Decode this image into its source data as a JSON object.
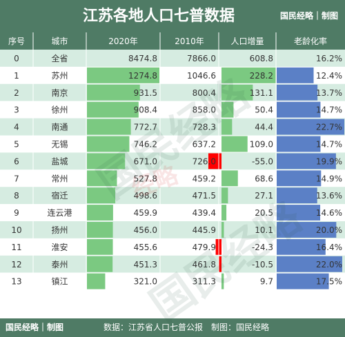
{
  "header": {
    "title": "江苏各地人口七普数据",
    "brand": "国民经略｜制图"
  },
  "footer": {
    "brand": "国民经略｜制图",
    "source": "数据：江苏省人口七普公报　制图：国民经略"
  },
  "colors": {
    "header_bg": "#4f7b65",
    "bar_green": "#7bc981",
    "bar_red": "#ff0000",
    "bar_blue": "#5b80c6",
    "row_alt": "#d6ece1",
    "row_base": "#ffffff"
  },
  "chart_data": {
    "type": "table",
    "columns": [
      "序号",
      "城市",
      "2020年",
      "2010年",
      "人口增量",
      "老龄化率"
    ],
    "rows": [
      {
        "idx": "0",
        "city": "全省",
        "p2020": "8474.8",
        "p2010": "7866.0",
        "delta": "608.8",
        "aging": "16.2%"
      },
      {
        "idx": "1",
        "city": "苏州",
        "p2020": "1274.8",
        "p2010": "1046.6",
        "delta": "228.2",
        "aging": "12.4%"
      },
      {
        "idx": "2",
        "city": "南京",
        "p2020": "931.5",
        "p2010": "800.4",
        "delta": "131.1",
        "aging": "13.7%"
      },
      {
        "idx": "3",
        "city": "徐州",
        "p2020": "908.4",
        "p2010": "858.0",
        "delta": "50.4",
        "aging": "14.7%"
      },
      {
        "idx": "4",
        "city": "南通",
        "p2020": "772.7",
        "p2010": "728.3",
        "delta": "44.4",
        "aging": "22.7%"
      },
      {
        "idx": "5",
        "city": "无锡",
        "p2020": "746.2",
        "p2010": "637.2",
        "delta": "109.0",
        "aging": "14.7%"
      },
      {
        "idx": "6",
        "city": "盐城",
        "p2020": "671.0",
        "p2010": "726.0",
        "delta": "-55.0",
        "aging": "19.9%"
      },
      {
        "idx": "7",
        "city": "常州",
        "p2020": "527.8",
        "p2010": "459.2",
        "delta": "68.6",
        "aging": "14.9%"
      },
      {
        "idx": "8",
        "city": "宿迁",
        "p2020": "498.6",
        "p2010": "471.5",
        "delta": "27.1",
        "aging": "13.6%"
      },
      {
        "idx": "9",
        "city": "连云港",
        "p2020": "459.9",
        "p2010": "439.4",
        "delta": "20.5",
        "aging": "14.6%"
      },
      {
        "idx": "10",
        "city": "扬州",
        "p2020": "456.0",
        "p2010": "445.9",
        "delta": "10.1",
        "aging": "20.0%"
      },
      {
        "idx": "11",
        "city": "淮安",
        "p2020": "455.6",
        "p2010": "479.9",
        "delta": "-24.3",
        "aging": "16.4%"
      },
      {
        "idx": "12",
        "city": "泰州",
        "p2020": "451.3",
        "p2010": "461.8",
        "delta": "-10.5",
        "aging": "22.0%"
      },
      {
        "idx": "13",
        "city": "镇江",
        "p2020": "321.0",
        "p2010": "311.3",
        "delta": "9.7",
        "aging": "17.5%"
      }
    ]
  }
}
